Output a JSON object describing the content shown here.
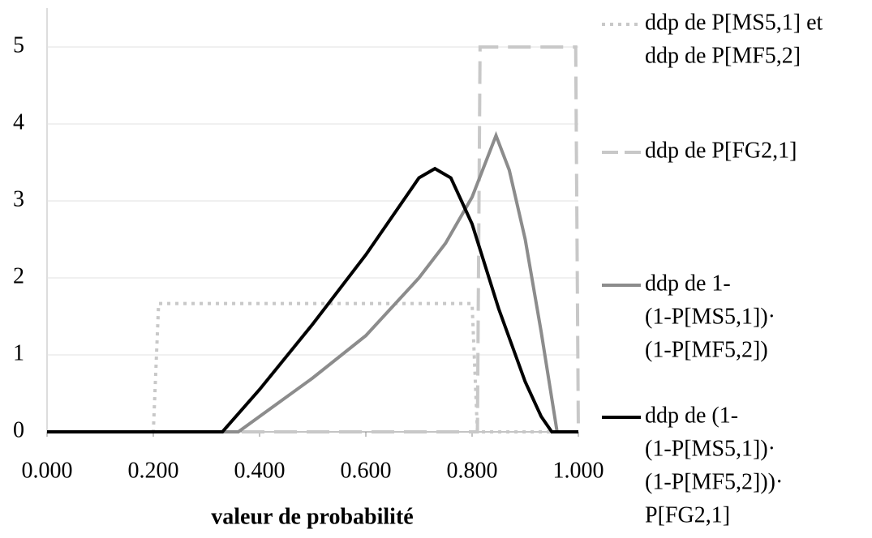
{
  "chart_data": {
    "type": "line",
    "xlabel": "valeur de probabilité",
    "xlim": [
      0,
      1
    ],
    "ylim": [
      0,
      5
    ],
    "xticks": [
      {
        "value": 0,
        "label": "0.000"
      },
      {
        "value": 0.2,
        "label": "0.200"
      },
      {
        "value": 0.4,
        "label": "0.400"
      },
      {
        "value": 0.6,
        "label": "0.600"
      },
      {
        "value": 0.8,
        "label": "0.800"
      },
      {
        "value": 1,
        "label": "1.000"
      }
    ],
    "yticks": [
      0,
      1,
      2,
      3,
      4,
      5
    ],
    "grid": true,
    "series": [
      {
        "name": [
          "ddp de P[MS5,1] et",
          "ddp de P[MF5,2]"
        ],
        "color": "#c8c8c8",
        "dash": "4 6",
        "x": [
          0,
          0.2,
          0.21,
          0.8,
          0.81,
          1
        ],
        "values": [
          0,
          0,
          1.667,
          1.667,
          0,
          0
        ]
      },
      {
        "name": [
          "ddp de P[FG2,1]"
        ],
        "color": "#c8c8c8",
        "dash": "28 12",
        "x": [
          0,
          0.81,
          0.815,
          0.995,
          1.0
        ],
        "values": [
          0,
          0,
          5,
          5,
          0
        ]
      },
      {
        "name": [
          "ddp de 1-",
          "(1-P[MS5,1])·",
          "(1-P[MF5,2])"
        ],
        "color": "#8c8c8c",
        "dash": "",
        "x": [
          0,
          0.36,
          0.4,
          0.5,
          0.6,
          0.7,
          0.75,
          0.8,
          0.845,
          0.87,
          0.9,
          0.93,
          0.96,
          1.0
        ],
        "values": [
          0,
          0,
          0.2,
          0.7,
          1.25,
          2.0,
          2.45,
          3.05,
          3.85,
          3.4,
          2.5,
          1.3,
          0,
          0
        ]
      },
      {
        "name": [
          "ddp de (1-",
          "(1-P[MS5,1])·",
          "(1-P[MF5,2]))·",
          "P[FG2,1]"
        ],
        "color": "#000000",
        "dash": "",
        "x": [
          0,
          0.33,
          0.4,
          0.5,
          0.6,
          0.65,
          0.7,
          0.73,
          0.76,
          0.8,
          0.85,
          0.9,
          0.93,
          0.95,
          1.0
        ],
        "values": [
          0,
          0,
          0.55,
          1.4,
          2.3,
          2.8,
          3.3,
          3.42,
          3.3,
          2.7,
          1.6,
          0.65,
          0.2,
          0,
          0
        ]
      }
    ]
  }
}
